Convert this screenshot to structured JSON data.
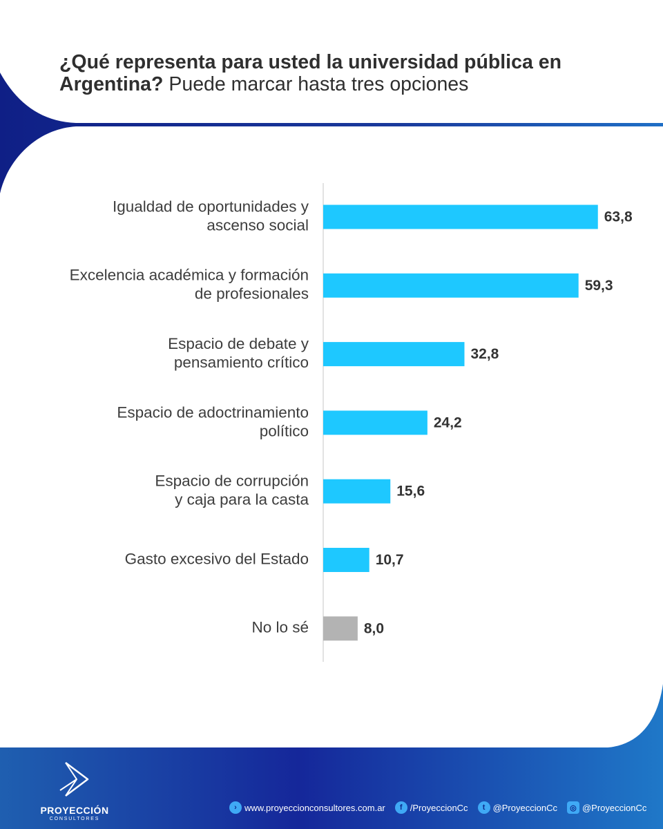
{
  "title": {
    "bold": "¿Qué representa para usted la universidad pública en Argentina?",
    "regular": "Puede marcar hasta tres opciones"
  },
  "chart_data": {
    "type": "bar",
    "orientation": "horizontal",
    "categories": [
      [
        "Igualdad de oportunidades y",
        "ascenso social"
      ],
      [
        "Excelencia académica y formación",
        "de profesionales"
      ],
      [
        "Espacio de debate y",
        "pensamiento crítico"
      ],
      [
        "Espacio de adoctrinamiento",
        "político"
      ],
      [
        "Espacio de corrupción",
        "y caja para la casta"
      ],
      [
        "Gasto excesivo del Estado"
      ],
      [
        "No lo sé"
      ]
    ],
    "values": [
      63.8,
      59.3,
      32.8,
      24.2,
      15.6,
      10.7,
      8.0
    ],
    "value_labels": [
      "63,8",
      "59,3",
      "32,8",
      "24,2",
      "15,6",
      "10,7",
      "8,0"
    ],
    "bar_colors": [
      "#1ec8ff",
      "#1ec8ff",
      "#1ec8ff",
      "#1ec8ff",
      "#1ec8ff",
      "#1ec8ff",
      "#b3b3b3"
    ],
    "xlim": [
      0,
      64
    ],
    "grid": false
  },
  "footer": {
    "brand": "PROYECCIÓN",
    "brand_sub": "CONSULTORES",
    "contacts": [
      {
        "icon": "chevron-right-icon",
        "glyph": "›",
        "text": "www.proyeccionconsultores.com.ar"
      },
      {
        "icon": "facebook-icon",
        "glyph": "f",
        "text": "/ProyeccionCc"
      },
      {
        "icon": "twitter-icon",
        "glyph": "t",
        "text": "@ProyeccionCc"
      },
      {
        "icon": "instagram-icon",
        "glyph": "◎",
        "text": "@ProyeccionCc"
      }
    ]
  },
  "colors": {
    "accent_dark": "#142b8f",
    "accent_light": "#1f7fd4",
    "bar": "#1ec8ff",
    "bar_neutral": "#b3b3b3"
  }
}
